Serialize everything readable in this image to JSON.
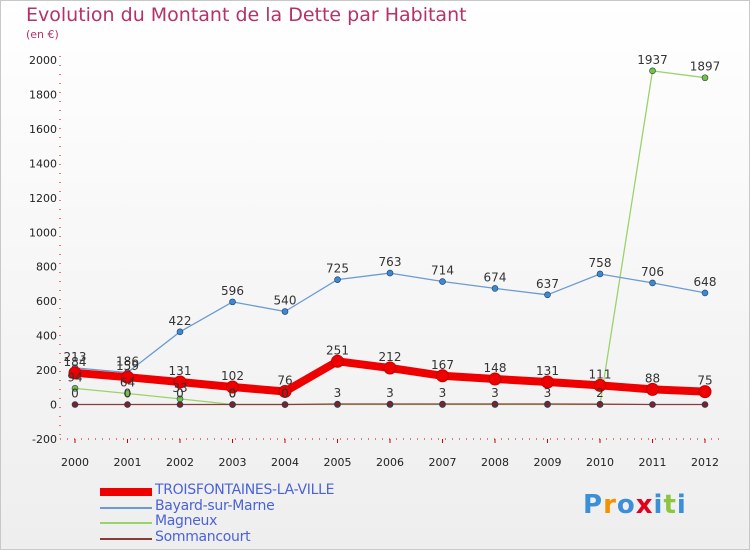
{
  "title": "Evolution du Montant de la Dette par Habitant",
  "subtitle": "(en €)",
  "logo": {
    "text": "Proxiti",
    "colors": [
      "#3a8fd6",
      "#f39200",
      "#3a8fd6",
      "#e2001a",
      "#3a8fd6",
      "#8cc63f",
      "#3a8fd6"
    ]
  },
  "chart_data": {
    "type": "line",
    "x": [
      "2000",
      "2001",
      "2002",
      "2003",
      "2004",
      "2005",
      "2006",
      "2007",
      "2008",
      "2009",
      "2010",
      "2011",
      "2012"
    ],
    "ylim": [
      -200,
      2000
    ],
    "yticks": [
      -200,
      0,
      200,
      400,
      600,
      800,
      1000,
      1200,
      1400,
      1600,
      1800,
      2000
    ],
    "grid": false,
    "legend_position": "bottom-left",
    "series": [
      {
        "name": "TROISFONTAINES-LA-VILLE",
        "color": "#ee0000",
        "width": 8,
        "values": [
          184,
          159,
          131,
          102,
          76,
          251,
          212,
          167,
          148,
          131,
          111,
          88,
          75
        ]
      },
      {
        "name": "Bayard-sur-Marne",
        "color": "#6b9bd2",
        "width": 1.3,
        "marker": "#3d88cf",
        "values": [
          213,
          186,
          422,
          596,
          540,
          725,
          763,
          714,
          674,
          637,
          758,
          706,
          648
        ]
      },
      {
        "name": "Magneux",
        "color": "#9bd36a",
        "width": 1.3,
        "marker": "#78c23a",
        "values": [
          94,
          64,
          33,
          0,
          0,
          0,
          0,
          0,
          0,
          0,
          0,
          1937,
          1897
        ]
      },
      {
        "name": "Sommancourt",
        "color": "#8b3a3a",
        "width": 1.3,
        "marker": "#7a2424",
        "values": [
          0,
          0,
          0,
          0,
          0,
          3,
          3,
          3,
          3,
          3,
          2,
          0,
          0
        ]
      }
    ],
    "data_labels": [
      {
        "series": 0,
        "index": 0,
        "text": "184"
      },
      {
        "series": 0,
        "index": 1,
        "text": "159"
      },
      {
        "series": 0,
        "index": 2,
        "text": "131"
      },
      {
        "series": 0,
        "index": 3,
        "text": "102"
      },
      {
        "series": 0,
        "index": 4,
        "text": "76"
      },
      {
        "series": 0,
        "index": 5,
        "text": "251"
      },
      {
        "series": 0,
        "index": 6,
        "text": "212"
      },
      {
        "series": 0,
        "index": 7,
        "text": "167"
      },
      {
        "series": 0,
        "index": 8,
        "text": "148"
      },
      {
        "series": 0,
        "index": 9,
        "text": "131"
      },
      {
        "series": 0,
        "index": 10,
        "text": "111"
      },
      {
        "series": 0,
        "index": 11,
        "text": "88"
      },
      {
        "series": 0,
        "index": 12,
        "text": "75"
      },
      {
        "series": 1,
        "index": 0,
        "text": "213"
      },
      {
        "series": 1,
        "index": 1,
        "text": "186"
      },
      {
        "series": 1,
        "index": 2,
        "text": "422"
      },
      {
        "series": 1,
        "index": 3,
        "text": "596"
      },
      {
        "series": 1,
        "index": 4,
        "text": "540"
      },
      {
        "series": 1,
        "index": 5,
        "text": "725"
      },
      {
        "series": 1,
        "index": 6,
        "text": "763"
      },
      {
        "series": 1,
        "index": 7,
        "text": "714"
      },
      {
        "series": 1,
        "index": 8,
        "text": "674"
      },
      {
        "series": 1,
        "index": 9,
        "text": "637"
      },
      {
        "series": 1,
        "index": 10,
        "text": "758"
      },
      {
        "series": 1,
        "index": 11,
        "text": "706"
      },
      {
        "series": 1,
        "index": 12,
        "text": "648"
      },
      {
        "series": 2,
        "index": 0,
        "text": "94"
      },
      {
        "series": 2,
        "index": 1,
        "text": "64"
      },
      {
        "series": 2,
        "index": 2,
        "text": "33"
      },
      {
        "series": 2,
        "index": 3,
        "text": "0"
      },
      {
        "series": 2,
        "index": 4,
        "text": "0"
      },
      {
        "series": 2,
        "index": 11,
        "text": "1937"
      },
      {
        "series": 2,
        "index": 12,
        "text": "1897"
      },
      {
        "series": 3,
        "index": 0,
        "text": "0"
      },
      {
        "series": 3,
        "index": 1,
        "text": "0"
      },
      {
        "series": 3,
        "index": 2,
        "text": "0"
      },
      {
        "series": 3,
        "index": 3,
        "text": "0"
      },
      {
        "series": 3,
        "index": 4,
        "text": "0"
      },
      {
        "series": 3,
        "index": 5,
        "text": "3"
      },
      {
        "series": 3,
        "index": 6,
        "text": "3"
      },
      {
        "series": 3,
        "index": 7,
        "text": "3"
      },
      {
        "series": 3,
        "index": 8,
        "text": "3"
      },
      {
        "series": 3,
        "index": 9,
        "text": "3"
      },
      {
        "series": 3,
        "index": 10,
        "text": "2"
      }
    ]
  }
}
